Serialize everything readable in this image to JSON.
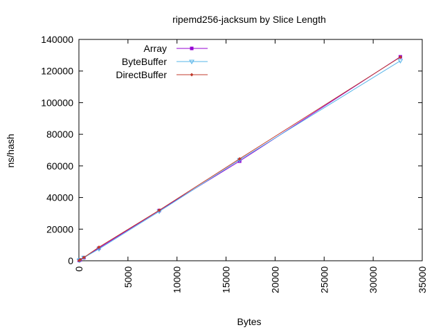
{
  "chart_data": {
    "type": "line",
    "title": "ripemd256-jacksum by Slice Length",
    "xlabel": "Bytes",
    "ylabel": "ns/hash",
    "xlim": [
      0,
      35000
    ],
    "ylim": [
      0,
      140000
    ],
    "xticks": [
      0,
      5000,
      10000,
      15000,
      20000,
      25000,
      30000,
      35000
    ],
    "yticks": [
      0,
      20000,
      40000,
      60000,
      80000,
      100000,
      120000,
      140000
    ],
    "grid": false,
    "legend_position": "top-left",
    "series": [
      {
        "name": "Array",
        "color": "#9400d3",
        "marker": "square",
        "x": [
          32,
          128,
          512,
          2048,
          8192,
          16384,
          32768
        ],
        "y": [
          200,
          600,
          2000,
          8000,
          31800,
          63000,
          129000
        ]
      },
      {
        "name": "ByteBuffer",
        "color": "#56b4e9",
        "marker": "triangle-down",
        "x": [
          32,
          128,
          512,
          2048,
          8192,
          16384,
          32768
        ],
        "y": [
          200,
          600,
          2000,
          7500,
          31200,
          63800,
          126500
        ]
      },
      {
        "name": "DirectBuffer",
        "color": "#c0392b",
        "marker": "diamond",
        "x": [
          32,
          128,
          512,
          2048,
          8192,
          16384,
          32768
        ],
        "y": [
          200,
          600,
          2100,
          8600,
          32000,
          64500,
          128800
        ]
      }
    ]
  }
}
